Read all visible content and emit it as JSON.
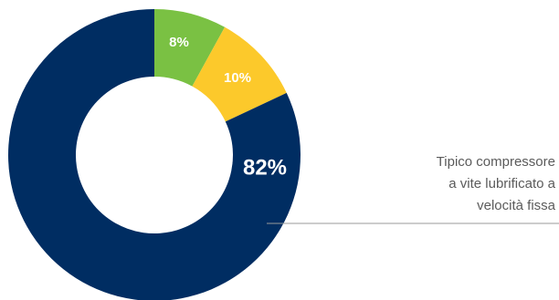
{
  "chart_data": {
    "type": "pie",
    "donut": true,
    "slices": [
      {
        "label": "82%",
        "value": 82,
        "color": "#002d62"
      },
      {
        "label": "8%",
        "value": 8,
        "color": "#7ac143"
      },
      {
        "label": "10%",
        "value": 10,
        "color": "#fcc92b"
      }
    ],
    "annotation": [
      "Tipico compressore",
      "a vite lubrificato a",
      "velocità fissa"
    ],
    "leader_line_color": "#9a9a9a"
  }
}
